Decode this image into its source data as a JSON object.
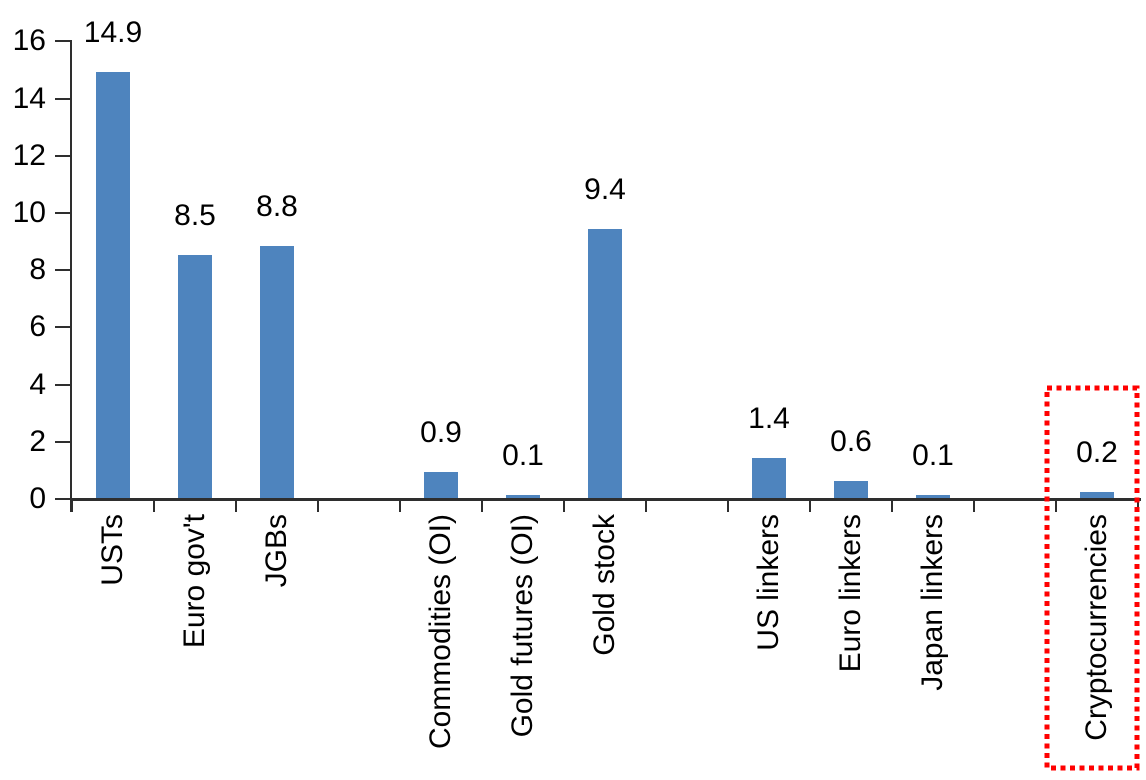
{
  "chart_data": {
    "type": "bar",
    "title": "",
    "categories": [
      "USTs",
      "Euro gov't",
      "JGBs",
      "Commodities (OI)",
      "Gold futures (OI)",
      "Gold stock",
      "US linkers",
      "Euro linkers",
      "Japan linkers",
      "Cryptocurrencies"
    ],
    "values": [
      14.9,
      8.5,
      8.8,
      0.9,
      0.1,
      9.4,
      1.4,
      0.6,
      0.1,
      0.2
    ],
    "data_labels": [
      "14.9",
      "8.5",
      "8.8",
      "0.9",
      "0.1",
      "9.4",
      "1.4",
      "0.6",
      "0.1",
      "0.2"
    ],
    "slot_layout": [
      "USTs",
      "Euro gov't",
      "JGBs",
      "",
      "Commodities (OI)",
      "Gold futures (OI)",
      "Gold stock",
      "",
      "US linkers",
      "Euro linkers",
      "Japan linkers",
      "",
      "Cryptocurrencies"
    ],
    "y_axis": {
      "min": 0,
      "max": 16,
      "tick_step": 2,
      "tick_labels": [
        "0",
        "2",
        "4",
        "6",
        "8",
        "10",
        "12",
        "14",
        "16"
      ]
    },
    "xlabel": "",
    "ylabel": "",
    "grid": false,
    "legend": "none",
    "category_label_rotation_deg": 90,
    "colors": {
      "bar": "#4E84BE",
      "axis": "#2e2e2e",
      "text": "#000000",
      "highlight_box": "#FF0000"
    },
    "highlight": {
      "category": "Cryptocurrencies",
      "shape": "red-dotted-rectangle"
    }
  }
}
